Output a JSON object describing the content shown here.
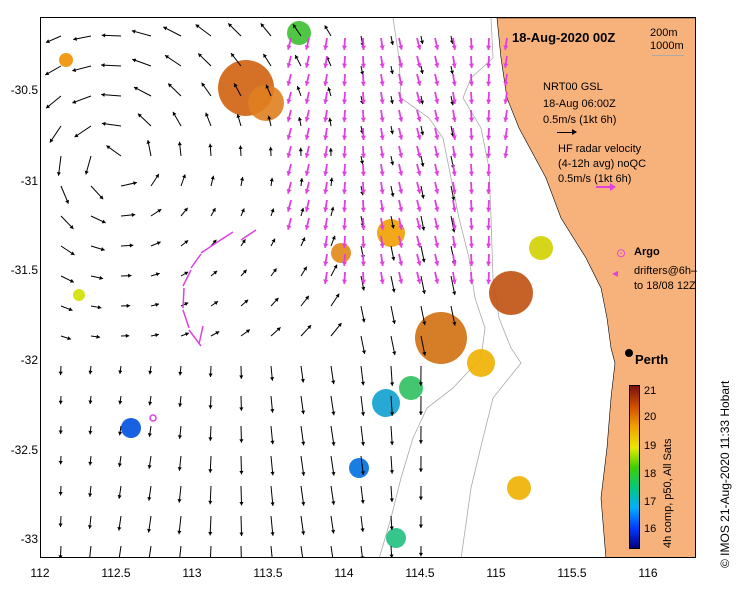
{
  "title": "18-Aug-2020 00Z",
  "depth_legend": [
    "200m",
    "1000m"
  ],
  "gsl_legend": [
    "NRT00 GSL",
    "18-Aug 06:00Z",
    "0.5m/s (1kt 6h)"
  ],
  "hf_legend": [
    "HF radar velocity",
    "(4-12h avg) noQC",
    "0.5m/s (1kt 6h)"
  ],
  "argo_label": "Argo",
  "drifter_legend": [
    "drifters@6h–",
    "to 18/08 12Z"
  ],
  "city": "Perth",
  "y_ticks": [
    "-30.5",
    "-31",
    "-31.5",
    "-32",
    "-32.5",
    "-33"
  ],
  "x_ticks": [
    "112",
    "112.5",
    "113",
    "113.5",
    "114",
    "114.5",
    "115",
    "115.5",
    "116"
  ],
  "colorbar_ticks": [
    "21",
    "20",
    "19",
    "18",
    "17",
    "16"
  ],
  "colorbar_label": "4h comp, p50, All Sats",
  "credit": "© IMOS 21-Aug-2020 11:33 Hobart",
  "colors": {
    "land": "#f7b27c",
    "hf_arrow": "#e040e0",
    "bathy": "#aaaaaa"
  }
}
